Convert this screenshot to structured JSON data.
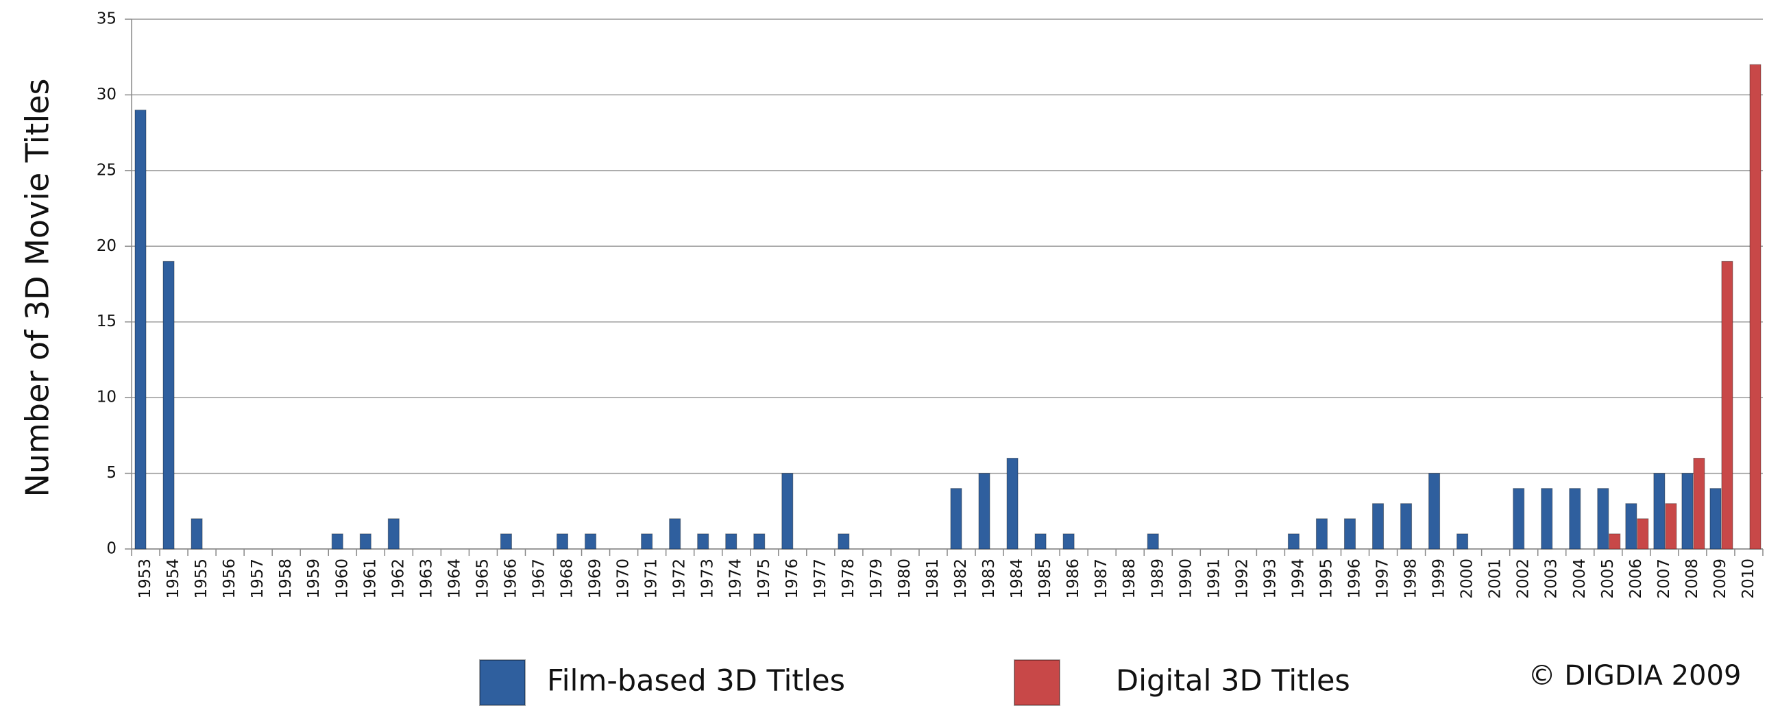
{
  "chart_data": {
    "type": "bar",
    "y_label": "Number of 3D Movie Titles",
    "annotation": "© DIGDIA 2009",
    "categories": [
      "1953",
      "1954",
      "1955",
      "1956",
      "1957",
      "1958",
      "1959",
      "1960",
      "1961",
      "1962",
      "1963",
      "1964",
      "1965",
      "1966",
      "1967",
      "1968",
      "1969",
      "1970",
      "1971",
      "1972",
      "1973",
      "1974",
      "1975",
      "1976",
      "1977",
      "1978",
      "1979",
      "1980",
      "1981",
      "1982",
      "1983",
      "1984",
      "1985",
      "1986",
      "1987",
      "1988",
      "1989",
      "1990",
      "1991",
      "1992",
      "1993",
      "1994",
      "1995",
      "1996",
      "1997",
      "1998",
      "1999",
      "2000",
      "2001",
      "2002",
      "2003",
      "2004",
      "2005",
      "2006",
      "2007",
      "2008",
      "2009",
      "2010"
    ],
    "series": [
      {
        "name": "Film-based 3D Titles",
        "color": "#2f5f9e",
        "values": [
          29,
          19,
          2,
          0,
          0,
          0,
          0,
          1,
          1,
          2,
          0,
          0,
          0,
          1,
          0,
          1,
          1,
          0,
          1,
          2,
          1,
          1,
          1,
          5,
          0,
          1,
          0,
          0,
          0,
          4,
          5,
          6,
          1,
          1,
          0,
          0,
          1,
          0,
          0,
          0,
          0,
          1,
          2,
          2,
          3,
          3,
          5,
          1,
          0,
          4,
          4,
          4,
          4,
          3,
          5,
          5,
          4,
          0
        ]
      },
      {
        "name": "Digital 3D Titles",
        "color": "#c84848",
        "values": [
          0,
          0,
          0,
          0,
          0,
          0,
          0,
          0,
          0,
          0,
          0,
          0,
          0,
          0,
          0,
          0,
          0,
          0,
          0,
          0,
          0,
          0,
          0,
          0,
          0,
          0,
          0,
          0,
          0,
          0,
          0,
          0,
          0,
          0,
          0,
          0,
          0,
          0,
          0,
          0,
          0,
          0,
          0,
          0,
          0,
          0,
          0,
          0,
          0,
          0,
          0,
          0,
          1,
          2,
          3,
          6,
          19,
          32
        ]
      }
    ],
    "ylim": [
      0,
      35
    ],
    "yticks": [
      0,
      5,
      10,
      15,
      20,
      25,
      30,
      35
    ],
    "grid": true
  }
}
